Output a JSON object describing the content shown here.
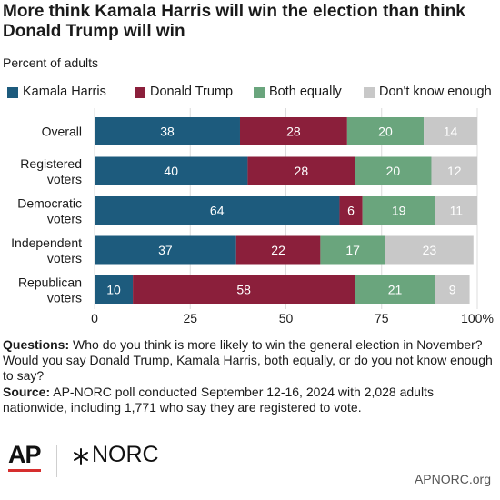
{
  "header": {
    "title": "More think Kamala Harris will win the election than think Donald Trump will win",
    "subtitle": "Percent of adults"
  },
  "legend": [
    {
      "label": "Kamala Harris",
      "color": "#1d5b7d"
    },
    {
      "label": "Donald Trump",
      "color": "#8b1f3b"
    },
    {
      "label": "Both equally",
      "color": "#6aa57d"
    },
    {
      "label": "Don't know enough",
      "color": "#c8c8c8"
    }
  ],
  "chart_data": {
    "type": "bar",
    "orientation": "horizontal",
    "stacked": true,
    "categories": [
      "Overall",
      "Registered voters",
      "Democratic voters",
      "Independent voters",
      "Republican voters"
    ],
    "series": [
      {
        "name": "Kamala Harris",
        "color": "#1d5b7d",
        "values": [
          38,
          40,
          64,
          37,
          10
        ]
      },
      {
        "name": "Donald Trump",
        "color": "#8b1f3b",
        "values": [
          28,
          28,
          6,
          22,
          58
        ]
      },
      {
        "name": "Both equally",
        "color": "#6aa57d",
        "values": [
          20,
          20,
          19,
          17,
          21
        ]
      },
      {
        "name": "Don't know enough",
        "color": "#c8c8c8",
        "values": [
          14,
          12,
          11,
          23,
          9
        ]
      }
    ],
    "xlim": [
      0,
      100
    ],
    "xticks": [
      "0",
      "25",
      "50",
      "75",
      "100%"
    ],
    "grid": true,
    "legend_position": "top"
  },
  "notes": {
    "questions_label": "Questions:",
    "questions_text": "Who do you think is more likely to win the general election in November? Would you say Donald Trump, Kamala Harris, both equally, or do you not know enough to say?",
    "source_label": "Source:",
    "source_text": "AP-NORC poll conducted September 12-16, 2024 with 2,028 adults nationwide, including 1,771 who say they are registered to vote."
  },
  "footer": {
    "ap_logo": "AP",
    "norc_logo": "NORC",
    "website": "APNORC.org"
  }
}
